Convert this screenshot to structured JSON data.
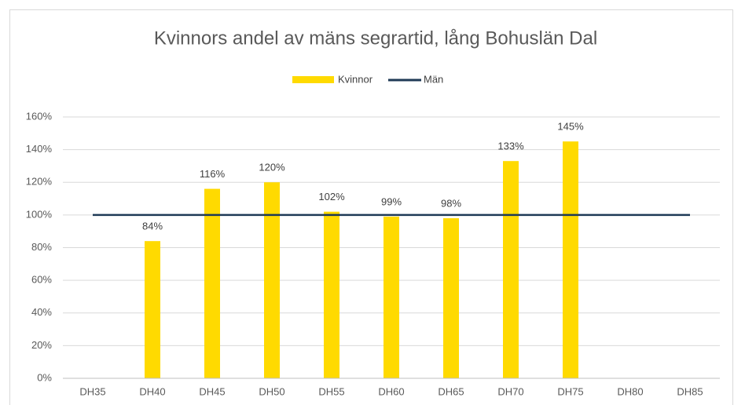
{
  "chart_data": {
    "type": "bar_line",
    "title": "Kvinnors andel av mäns segrartid, lång Bohuslän Dal",
    "categories": [
      "DH35",
      "DH40",
      "DH45",
      "DH50",
      "DH55",
      "DH60",
      "DH65",
      "DH70",
      "DH75",
      "DH80",
      "DH85"
    ],
    "series": [
      {
        "name": "Kvinnor",
        "kind": "bar",
        "color": "#ffda00",
        "values": [
          null,
          84,
          116,
          120,
          102,
          99,
          98,
          133,
          145,
          null,
          null
        ],
        "value_labels": [
          null,
          "84%",
          "116%",
          "120%",
          "102%",
          "99%",
          "98%",
          "133%",
          "145%",
          null,
          null
        ]
      },
      {
        "name": "Män",
        "kind": "line",
        "color": "#1f3a56",
        "values": [
          100,
          100,
          100,
          100,
          100,
          100,
          100,
          100,
          100,
          100,
          100
        ]
      }
    ],
    "ylim": [
      0,
      160
    ],
    "yticks": [
      {
        "value": 0,
        "label": "0%"
      },
      {
        "value": 20,
        "label": "20%"
      },
      {
        "value": 40,
        "label": "40%"
      },
      {
        "value": 60,
        "label": "60%"
      },
      {
        "value": 80,
        "label": "80%"
      },
      {
        "value": 100,
        "label": "100%"
      },
      {
        "value": 120,
        "label": "120%"
      },
      {
        "value": 140,
        "label": "140%"
      },
      {
        "value": 160,
        "label": "160%"
      }
    ],
    "grid": true,
    "legend": "top"
  }
}
